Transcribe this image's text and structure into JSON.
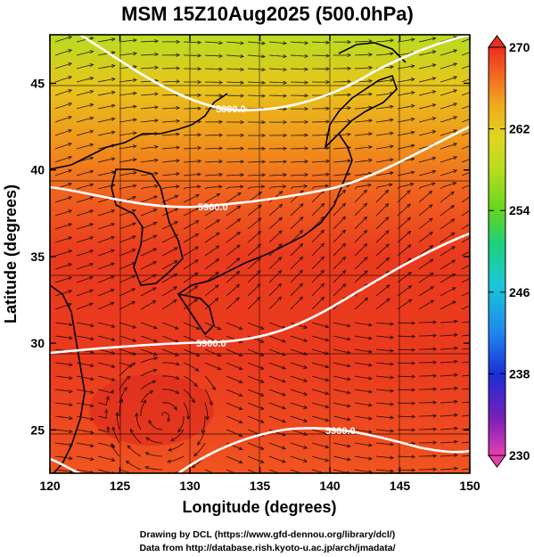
{
  "title": "MSM 15Z10Aug2025 (500.0hPa)",
  "x_axis": {
    "label": "Longitude (degrees)",
    "min": 120,
    "max": 150,
    "ticks": [
      "120",
      "125",
      "130",
      "135",
      "140",
      "145",
      "150"
    ]
  },
  "y_axis": {
    "label": "Latitude  (degrees)",
    "min": 22.5,
    "max": 47.8,
    "ticks": [
      "25",
      "30",
      "35",
      "40",
      "45"
    ]
  },
  "colorbar": {
    "min": 230,
    "max": 270,
    "ticks": [
      "270",
      "262",
      "254",
      "246",
      "238",
      "230"
    ],
    "colors": [
      "#e63fb0",
      "#7a1fb8",
      "#1a2fd6",
      "#1f86ee",
      "#19c8d8",
      "#1fd07a",
      "#63d61f",
      "#b8dc1f",
      "#e0d61f",
      "#f0a81f",
      "#f26a1f",
      "#ea2e1f"
    ]
  },
  "contours": [
    {
      "label": "5800.0"
    },
    {
      "label": "5900.0"
    },
    {
      "label": "5900.0"
    },
    {
      "label": "5900.0"
    }
  ],
  "credits": {
    "line1": "Drawing by DCL (https://www.gfd-dennou.org/library/dcl/)",
    "line2": "Data from http://database.rish.kyoto-u.ac.jp/arch/jmadata/"
  }
}
